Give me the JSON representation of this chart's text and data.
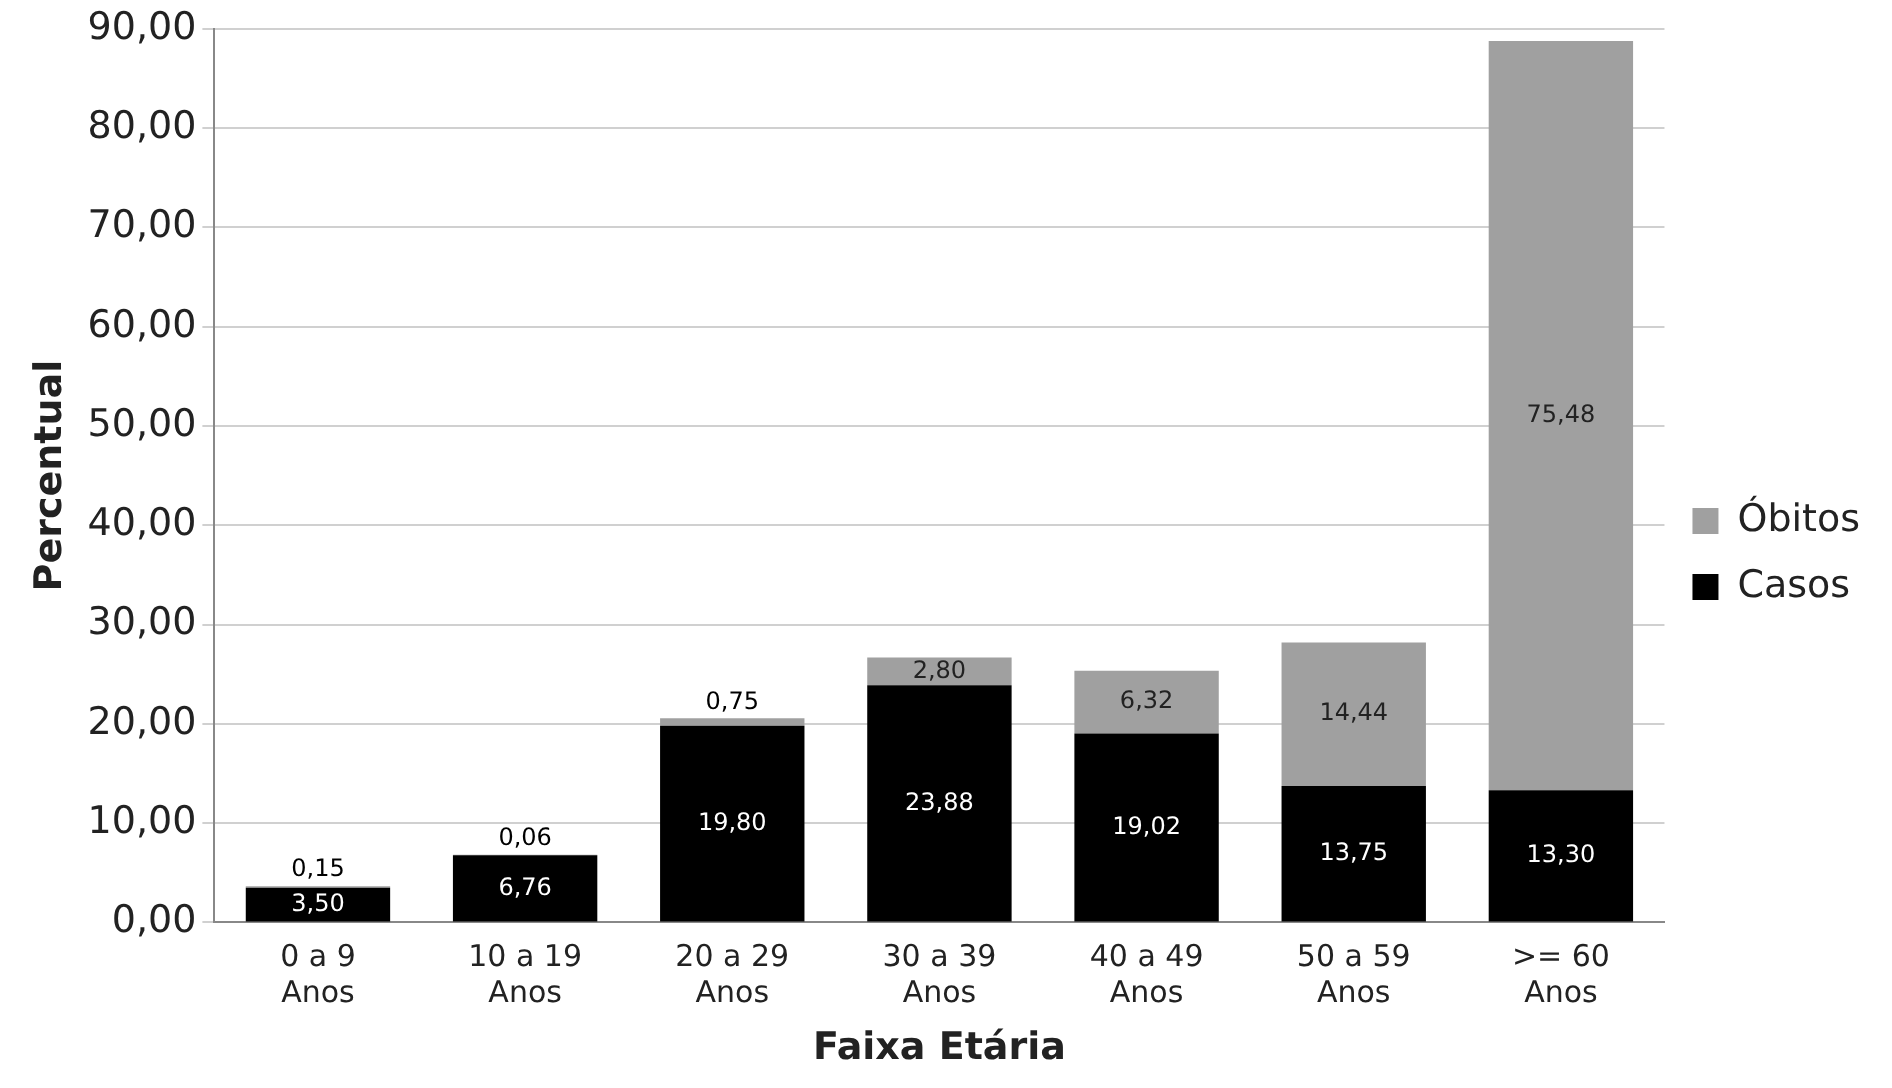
{
  "chart_data": {
    "type": "bar",
    "stacked": true,
    "xlabel": "Faixa Etária",
    "ylabel": "Percentual",
    "categories": [
      "0 a 9\nAnos",
      "10 a 19\nAnos",
      "20 a 29\nAnos",
      "30 a 39\nAnos",
      "40 a 49\nAnos",
      "50 a 59\nAnos",
      ">= 60\nAnos"
    ],
    "series": [
      {
        "name": "Casos",
        "color": "#000000",
        "values": [
          3.5,
          6.76,
          19.8,
          23.88,
          19.02,
          13.75,
          13.3
        ],
        "value_labels": [
          "3,50",
          "6,76",
          "19,80",
          "23,88",
          "19,02",
          "13,75",
          "13,30"
        ]
      },
      {
        "name": "Óbitos",
        "color": "#a0a0a0",
        "values": [
          0.15,
          0.06,
          0.75,
          2.8,
          6.32,
          14.44,
          75.48
        ],
        "value_labels": [
          "0,15",
          "0,06",
          "0,75",
          "2,80",
          "6,32",
          "14,44",
          "75,48"
        ]
      }
    ],
    "ylim": [
      0,
      90
    ],
    "yticks": [
      {
        "value": 0,
        "label": "0,00"
      },
      {
        "value": 10,
        "label": "10,00"
      },
      {
        "value": 20,
        "label": "20,00"
      },
      {
        "value": 30,
        "label": "30,00"
      },
      {
        "value": 40,
        "label": "40,00"
      },
      {
        "value": 50,
        "label": "50,00"
      },
      {
        "value": 60,
        "label": "60,00"
      },
      {
        "value": 70,
        "label": "70,00"
      },
      {
        "value": 80,
        "label": "80,00"
      },
      {
        "value": 90,
        "label": "90,00"
      }
    ],
    "grid": "y",
    "legend": "right"
  }
}
